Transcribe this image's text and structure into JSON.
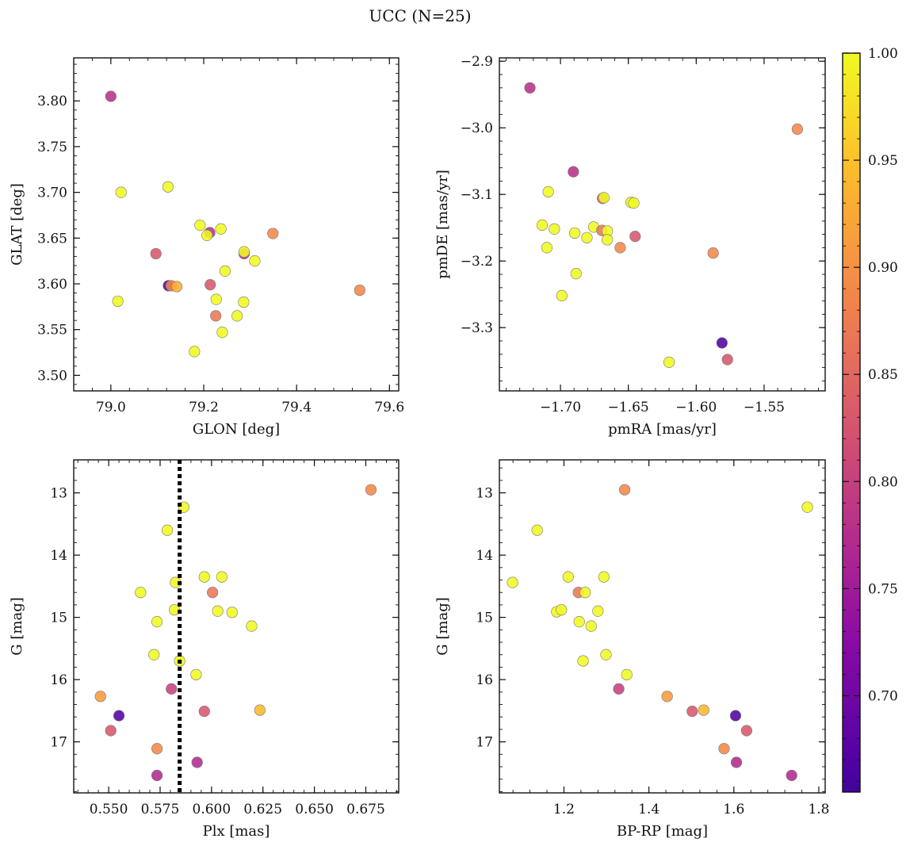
{
  "figure": {
    "title": "UCC (N=25)"
  },
  "colorbar": {
    "cmap": "plasma",
    "range": [
      0.655,
      1.0
    ],
    "ticks": [
      0.7,
      0.75,
      0.8,
      0.85,
      0.9,
      0.95,
      1.0
    ],
    "tick_labels": [
      "0.70",
      "0.75",
      "0.80",
      "0.85",
      "0.90",
      "0.95",
      "1.00"
    ]
  },
  "chart_data": [
    {
      "type": "scatter",
      "panel": "top-left",
      "xlabel": "GLON [deg]",
      "ylabel": "GLAT [deg]",
      "xlim": [
        78.92,
        79.62
      ],
      "ylim": [
        3.483,
        3.847
      ],
      "y_inverted": false,
      "xticks": [
        79.0,
        79.2,
        79.4,
        79.6
      ],
      "xtick_labels": [
        "79.0",
        "79.2",
        "79.4",
        "79.6"
      ],
      "yticks": [
        3.5,
        3.55,
        3.6,
        3.65,
        3.7,
        3.75,
        3.8
      ],
      "ytick_labels": [
        "3.50",
        "3.55",
        "3.60",
        "3.65",
        "3.70",
        "3.75",
        "3.80"
      ],
      "points": [
        {
          "x": 79.0,
          "y": 3.805,
          "c": 0.78
        },
        {
          "x": 79.022,
          "y": 3.7,
          "c": 1.0
        },
        {
          "x": 79.123,
          "y": 3.706,
          "c": 1.0
        },
        {
          "x": 79.015,
          "y": 3.581,
          "c": 1.0
        },
        {
          "x": 79.097,
          "y": 3.633,
          "c": 0.83
        },
        {
          "x": 79.124,
          "y": 3.598,
          "c": 0.67
        },
        {
          "x": 79.13,
          "y": 3.598,
          "c": 0.89
        },
        {
          "x": 79.142,
          "y": 3.597,
          "c": 0.93
        },
        {
          "x": 79.18,
          "y": 3.526,
          "c": 1.0
        },
        {
          "x": 79.192,
          "y": 3.664,
          "c": 1.0
        },
        {
          "x": 79.213,
          "y": 3.656,
          "c": 0.78
        },
        {
          "x": 79.207,
          "y": 3.653,
          "c": 1.0
        },
        {
          "x": 79.237,
          "y": 3.66,
          "c": 1.0
        },
        {
          "x": 79.214,
          "y": 3.599,
          "c": 0.83
        },
        {
          "x": 79.226,
          "y": 3.565,
          "c": 0.87
        },
        {
          "x": 79.227,
          "y": 3.583,
          "c": 1.0
        },
        {
          "x": 79.246,
          "y": 3.614,
          "c": 1.0
        },
        {
          "x": 79.24,
          "y": 3.547,
          "c": 1.0
        },
        {
          "x": 79.272,
          "y": 3.565,
          "c": 1.0
        },
        {
          "x": 79.286,
          "y": 3.58,
          "c": 1.0
        },
        {
          "x": 79.287,
          "y": 3.633,
          "c": 0.77
        },
        {
          "x": 79.287,
          "y": 3.635,
          "c": 1.0
        },
        {
          "x": 79.31,
          "y": 3.625,
          "c": 1.0
        },
        {
          "x": 79.349,
          "y": 3.655,
          "c": 0.89
        },
        {
          "x": 79.536,
          "y": 3.593,
          "c": 0.89
        }
      ]
    },
    {
      "type": "scatter",
      "panel": "top-right",
      "xlabel": "pmRA [mas/yr]",
      "ylabel": "pmDE [mas/yr]",
      "xlim": [
        -1.745,
        -1.505
      ],
      "ylim": [
        -3.395,
        -2.895
      ],
      "y_inverted": false,
      "xticks": [
        -1.7,
        -1.65,
        -1.6,
        -1.55
      ],
      "xtick_labels": [
        "−1.70",
        "−1.65",
        "−1.60",
        "−1.55"
      ],
      "yticks": [
        -3.3,
        -3.2,
        -3.1,
        -3.0,
        -2.9
      ],
      "ytick_labels": [
        "−3.3",
        "−3.2",
        "−3.1",
        "−3.0",
        "−2.9"
      ],
      "points": [
        {
          "x": -1.7225,
          "y": -2.94,
          "c": 0.78
        },
        {
          "x": -1.6905,
          "y": -3.066,
          "c": 0.78
        },
        {
          "x": -1.709,
          "y": -3.096,
          "c": 1.0
        },
        {
          "x": -1.669,
          "y": -3.106,
          "c": 0.83
        },
        {
          "x": -1.668,
          "y": -3.105,
          "c": 1.0
        },
        {
          "x": -1.648,
          "y": -3.112,
          "c": 1.0
        },
        {
          "x": -1.646,
          "y": -3.113,
          "c": 1.0
        },
        {
          "x": -1.7135,
          "y": -3.146,
          "c": 1.0
        },
        {
          "x": -1.7045,
          "y": -3.152,
          "c": 1.0
        },
        {
          "x": -1.6755,
          "y": -3.149,
          "c": 1.0
        },
        {
          "x": -1.6695,
          "y": -3.154,
          "c": 0.87
        },
        {
          "x": -1.6655,
          "y": -3.155,
          "c": 1.0
        },
        {
          "x": -1.6895,
          "y": -3.158,
          "c": 1.0
        },
        {
          "x": -1.6805,
          "y": -3.165,
          "c": 1.0
        },
        {
          "x": -1.6655,
          "y": -3.168,
          "c": 1.0
        },
        {
          "x": -1.645,
          "y": -3.163,
          "c": 0.83
        },
        {
          "x": -1.656,
          "y": -3.18,
          "c": 0.89
        },
        {
          "x": -1.71,
          "y": -3.18,
          "c": 1.0
        },
        {
          "x": -1.6885,
          "y": -3.219,
          "c": 1.0
        },
        {
          "x": -1.699,
          "y": -3.252,
          "c": 1.0
        },
        {
          "x": -1.5875,
          "y": -3.188,
          "c": 0.89
        },
        {
          "x": -1.5255,
          "y": -3.002,
          "c": 0.89
        },
        {
          "x": -1.581,
          "y": -3.323,
          "c": 0.67
        },
        {
          "x": -1.577,
          "y": -3.348,
          "c": 0.83
        },
        {
          "x": -1.62,
          "y": -3.352,
          "c": 1.0
        }
      ]
    },
    {
      "type": "scatter",
      "panel": "bottom-left",
      "xlabel": "Plx [mas]",
      "ylabel": "G [mag]",
      "xlim": [
        0.533,
        0.691
      ],
      "ylim": [
        17.82,
        12.47
      ],
      "y_inverted": true,
      "xticks": [
        0.55,
        0.575,
        0.6,
        0.625,
        0.65,
        0.675
      ],
      "xtick_labels": [
        "0.550",
        "0.575",
        "0.600",
        "0.625",
        "0.650",
        "0.675"
      ],
      "yticks": [
        13,
        14,
        15,
        16,
        17
      ],
      "ytick_labels": [
        "13",
        "14",
        "15",
        "16",
        "17"
      ],
      "vline": {
        "x": 0.5845,
        "style": "dotted",
        "color": "#000000"
      },
      "points": [
        {
          "x": 0.6775,
          "y": 12.95,
          "c": 0.89
        },
        {
          "x": 0.5865,
          "y": 13.23,
          "c": 1.0
        },
        {
          "x": 0.5785,
          "y": 13.6,
          "c": 1.0
        },
        {
          "x": 0.5965,
          "y": 14.35,
          "c": 1.0
        },
        {
          "x": 0.605,
          "y": 14.35,
          "c": 1.0
        },
        {
          "x": 0.5825,
          "y": 14.44,
          "c": 1.0
        },
        {
          "x": 0.5655,
          "y": 14.6,
          "c": 1.0
        },
        {
          "x": 0.6005,
          "y": 14.6,
          "c": 0.87
        },
        {
          "x": 0.582,
          "y": 14.88,
          "c": 1.0
        },
        {
          "x": 0.603,
          "y": 14.9,
          "c": 1.0
        },
        {
          "x": 0.61,
          "y": 14.92,
          "c": 1.0
        },
        {
          "x": 0.5735,
          "y": 15.07,
          "c": 1.0
        },
        {
          "x": 0.6195,
          "y": 15.14,
          "c": 1.0
        },
        {
          "x": 0.572,
          "y": 15.6,
          "c": 1.0
        },
        {
          "x": 0.5845,
          "y": 15.7,
          "c": 1.0
        },
        {
          "x": 0.5925,
          "y": 15.92,
          "c": 1.0
        },
        {
          "x": 0.5805,
          "y": 16.15,
          "c": 0.8
        },
        {
          "x": 0.546,
          "y": 16.27,
          "c": 0.91
        },
        {
          "x": 0.5965,
          "y": 16.51,
          "c": 0.83
        },
        {
          "x": 0.6235,
          "y": 16.49,
          "c": 0.94
        },
        {
          "x": 0.555,
          "y": 16.58,
          "c": 0.67
        },
        {
          "x": 0.551,
          "y": 16.82,
          "c": 0.83
        },
        {
          "x": 0.5735,
          "y": 17.11,
          "c": 0.89
        },
        {
          "x": 0.593,
          "y": 17.33,
          "c": 0.77
        },
        {
          "x": 0.5735,
          "y": 17.54,
          "c": 0.77
        }
      ]
    },
    {
      "type": "scatter",
      "panel": "bottom-right",
      "xlabel": "BP-RP [mag]",
      "ylabel": "G [mag]",
      "xlim": [
        1.048,
        1.815
      ],
      "ylim": [
        17.82,
        12.47
      ],
      "y_inverted": true,
      "xticks": [
        1.2,
        1.4,
        1.6,
        1.8
      ],
      "xtick_labels": [
        "1.2",
        "1.4",
        "1.6",
        "1.8"
      ],
      "yticks": [
        13,
        14,
        15,
        16,
        17
      ],
      "ytick_labels": [
        "13",
        "14",
        "15",
        "16",
        "17"
      ],
      "points": [
        {
          "x": 1.343,
          "y": 12.95,
          "c": 0.89
        },
        {
          "x": 1.773,
          "y": 13.23,
          "c": 1.0
        },
        {
          "x": 1.137,
          "y": 13.6,
          "c": 1.0
        },
        {
          "x": 1.21,
          "y": 14.35,
          "c": 1.0
        },
        {
          "x": 1.294,
          "y": 14.35,
          "c": 1.0
        },
        {
          "x": 1.079,
          "y": 14.44,
          "c": 1.0
        },
        {
          "x": 1.234,
          "y": 14.6,
          "c": 0.87
        },
        {
          "x": 1.25,
          "y": 14.6,
          "c": 1.0
        },
        {
          "x": 1.183,
          "y": 14.91,
          "c": 1.0
        },
        {
          "x": 1.194,
          "y": 14.88,
          "c": 1.0
        },
        {
          "x": 1.28,
          "y": 14.9,
          "c": 1.0
        },
        {
          "x": 1.236,
          "y": 15.07,
          "c": 1.0
        },
        {
          "x": 1.264,
          "y": 15.14,
          "c": 1.0
        },
        {
          "x": 1.299,
          "y": 15.6,
          "c": 1.0
        },
        {
          "x": 1.245,
          "y": 15.7,
          "c": 1.0
        },
        {
          "x": 1.348,
          "y": 15.92,
          "c": 1.0
        },
        {
          "x": 1.329,
          "y": 16.15,
          "c": 0.8
        },
        {
          "x": 1.443,
          "y": 16.27,
          "c": 0.91
        },
        {
          "x": 1.502,
          "y": 16.51,
          "c": 0.83
        },
        {
          "x": 1.529,
          "y": 16.49,
          "c": 0.94
        },
        {
          "x": 1.604,
          "y": 16.58,
          "c": 0.67
        },
        {
          "x": 1.63,
          "y": 16.82,
          "c": 0.83
        },
        {
          "x": 1.577,
          "y": 17.11,
          "c": 0.89
        },
        {
          "x": 1.606,
          "y": 17.33,
          "c": 0.77
        },
        {
          "x": 1.736,
          "y": 17.54,
          "c": 0.77
        }
      ]
    }
  ]
}
